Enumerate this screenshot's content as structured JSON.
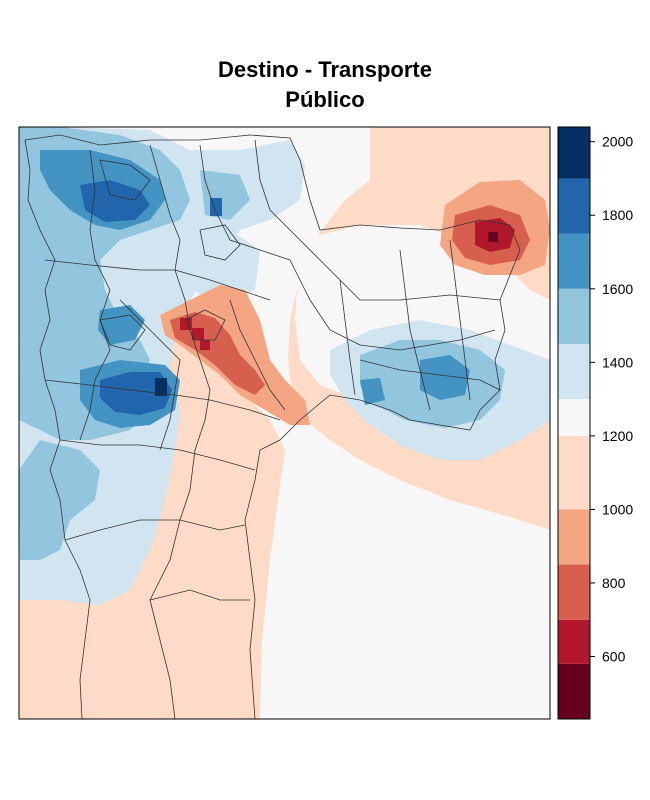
{
  "title": [
    "Destino - Transporte",
    "Público"
  ],
  "colorbar": {
    "min": 430,
    "max": 2040,
    "tick_labels": [
      "2000",
      "1800",
      "1600",
      "1400",
      "1200",
      "1000",
      "800",
      "600"
    ],
    "tick_values": [
      2000,
      1800,
      1600,
      1400,
      1200,
      1000,
      800,
      600
    ],
    "bins": [
      {
        "lo": 430,
        "hi": 580,
        "color": "#67001f"
      },
      {
        "lo": 580,
        "hi": 700,
        "color": "#b2182b"
      },
      {
        "lo": 700,
        "hi": 850,
        "color": "#d6604d"
      },
      {
        "lo": 850,
        "hi": 1000,
        "color": "#f4a582"
      },
      {
        "lo": 1000,
        "hi": 1200,
        "color": "#fddbc7"
      },
      {
        "lo": 1200,
        "hi": 1300,
        "color": "#f7f7f7"
      },
      {
        "lo": 1300,
        "hi": 1450,
        "color": "#d1e5f0"
      },
      {
        "lo": 1450,
        "hi": 1600,
        "color": "#92c5de"
      },
      {
        "lo": 1600,
        "hi": 1750,
        "color": "#4393c3"
      },
      {
        "lo": 1750,
        "hi": 1900,
        "color": "#2166ac"
      },
      {
        "lo": 1900,
        "hi": 2040,
        "color": "#053061"
      }
    ]
  }
}
